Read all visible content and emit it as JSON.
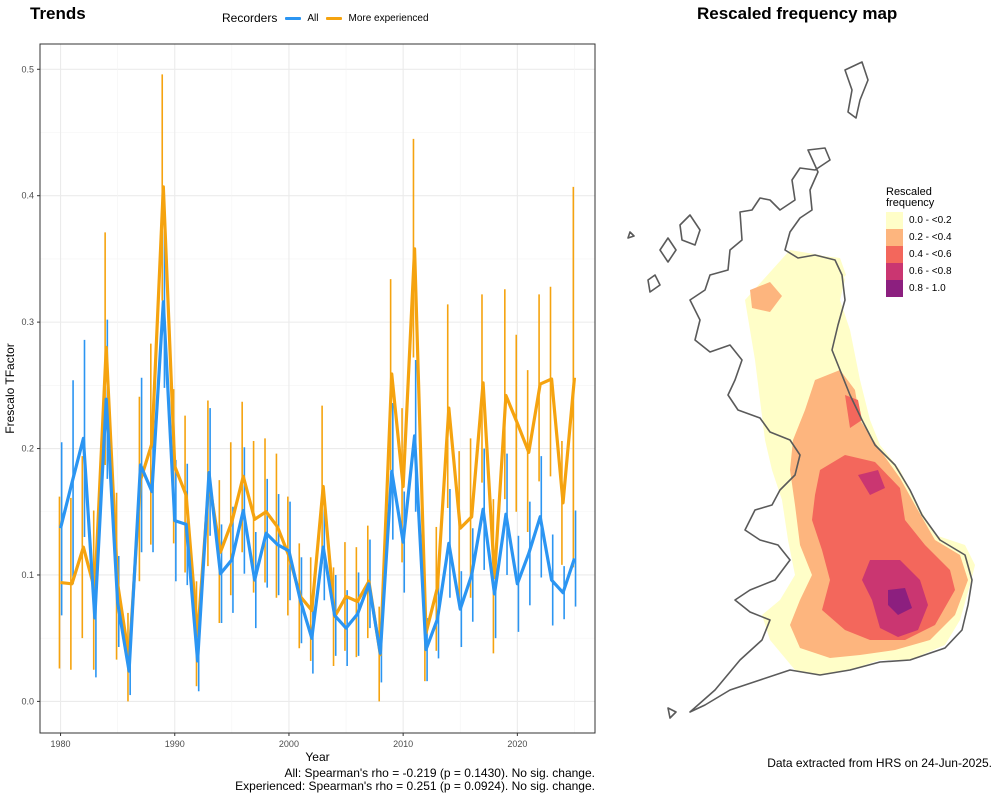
{
  "trends_title": "Trends",
  "map_title": "Rescaled frequency map",
  "legend": {
    "title": "Recorders",
    "items": [
      {
        "label": "All",
        "color": "#2B95F2"
      },
      {
        "label": "More experienced",
        "color": "#F5A30F"
      }
    ]
  },
  "stats": {
    "line1": "All: Spearman's rho = -0.219 (p = 0.1430). No sig. change.",
    "line2": "Experienced: Spearman's rho = 0.251 (p = 0.0924). No sig. change."
  },
  "chart_data": {
    "type": "line",
    "xlabel": "Year",
    "ylabel": "Frescalo TFactor",
    "xlim": [
      1978.2,
      1983.0
    ],
    "ylim": [
      -0.025,
      0.52
    ],
    "x_ticks": [
      1980,
      1990,
      2000,
      2010,
      2020
    ],
    "y_ticks": [
      0.0,
      0.1,
      0.2,
      0.3,
      0.4,
      0.5
    ],
    "y_tick_labels": [
      "0.0",
      "0.1",
      "0.2",
      "0.3",
      "0.4",
      "0.5"
    ],
    "grid": true,
    "error_bars": true,
    "x": [
      1980,
      1981,
      1982,
      1983,
      1984,
      1985,
      1986,
      1987,
      1988,
      1989,
      1990,
      1991,
      1992,
      1993,
      1994,
      1995,
      1996,
      1997,
      1998,
      1999,
      2000,
      2001,
      2002,
      2003,
      2004,
      2005,
      2006,
      2007,
      2008,
      2009,
      2010,
      2011,
      2012,
      2013,
      2014,
      2015,
      2016,
      2017,
      2018,
      2019,
      2020,
      2021,
      2022,
      2023,
      2024,
      2025
    ],
    "series": [
      {
        "name": "All",
        "color": "#2B95F2",
        "values": [
          0.137,
          0.173,
          0.208,
          0.066,
          0.239,
          0.078,
          0.024,
          0.187,
          0.166,
          0.316,
          0.143,
          0.14,
          0.032,
          0.181,
          0.101,
          0.112,
          0.151,
          0.096,
          0.133,
          0.124,
          0.119,
          0.08,
          0.05,
          0.122,
          0.068,
          0.058,
          0.069,
          0.093,
          0.038,
          0.182,
          0.126,
          0.21,
          0.041,
          0.065,
          0.125,
          0.073,
          0.1,
          0.152,
          0.085,
          0.148,
          0.093,
          0.117,
          0.146,
          0.096,
          0.086,
          0.113
        ],
        "lower": [
          0.068,
          0.093,
          0.13,
          0.019,
          0.176,
          0.043,
          0.005,
          0.118,
          0.118,
          0.248,
          0.095,
          0.092,
          0.008,
          0.131,
          0.062,
          0.07,
          0.101,
          0.058,
          0.09,
          0.084,
          0.08,
          0.046,
          0.022,
          0.08,
          0.036,
          0.028,
          0.036,
          0.058,
          0.015,
          0.128,
          0.086,
          0.15,
          0.016,
          0.034,
          0.082,
          0.043,
          0.063,
          0.104,
          0.05,
          0.1,
          0.055,
          0.076,
          0.098,
          0.06,
          0.065,
          0.075
        ],
        "upper": [
          0.205,
          0.254,
          0.286,
          0.113,
          0.302,
          0.115,
          0.043,
          0.256,
          0.214,
          0.384,
          0.191,
          0.188,
          0.056,
          0.232,
          0.14,
          0.154,
          0.201,
          0.134,
          0.176,
          0.164,
          0.158,
          0.114,
          0.078,
          0.164,
          0.1,
          0.088,
          0.102,
          0.128,
          0.061,
          0.236,
          0.166,
          0.27,
          0.066,
          0.096,
          0.168,
          0.103,
          0.137,
          0.2,
          0.12,
          0.196,
          0.131,
          0.158,
          0.194,
          0.132,
          0.107,
          0.151
        ]
      },
      {
        "name": "More experienced",
        "color": "#F5A30F",
        "values": [
          0.094,
          0.093,
          0.122,
          0.088,
          0.28,
          0.093,
          0.034,
          0.175,
          0.204,
          0.407,
          0.186,
          0.163,
          0.052,
          0.174,
          0.118,
          0.142,
          0.178,
          0.144,
          0.15,
          0.138,
          0.115,
          0.083,
          0.072,
          0.17,
          0.067,
          0.083,
          0.079,
          0.095,
          0.037,
          0.259,
          0.17,
          0.358,
          0.054,
          0.09,
          0.232,
          0.137,
          0.146,
          0.252,
          0.098,
          0.242,
          0.22,
          0.197,
          0.251,
          0.255,
          0.157,
          0.256
        ],
        "lower": [
          0.026,
          0.025,
          0.05,
          0.025,
          0.187,
          0.033,
          0.0,
          0.095,
          0.124,
          0.317,
          0.125,
          0.102,
          0.012,
          0.107,
          0.062,
          0.084,
          0.118,
          0.086,
          0.094,
          0.082,
          0.068,
          0.042,
          0.032,
          0.109,
          0.028,
          0.04,
          0.035,
          0.05,
          0.0,
          0.183,
          0.11,
          0.272,
          0.016,
          0.04,
          0.153,
          0.078,
          0.082,
          0.173,
          0.038,
          0.16,
          0.15,
          0.134,
          0.174,
          0.178,
          0.108,
          0.106
        ],
        "upper": [
          0.162,
          0.161,
          0.194,
          0.151,
          0.371,
          0.165,
          0.07,
          0.241,
          0.283,
          0.496,
          0.247,
          0.226,
          0.095,
          0.238,
          0.175,
          0.205,
          0.237,
          0.206,
          0.208,
          0.196,
          0.162,
          0.125,
          0.114,
          0.234,
          0.106,
          0.126,
          0.122,
          0.139,
          0.075,
          0.334,
          0.232,
          0.445,
          0.095,
          0.138,
          0.314,
          0.198,
          0.208,
          0.322,
          0.16,
          0.326,
          0.29,
          0.262,
          0.322,
          0.328,
          0.206,
          0.407
        ]
      }
    ]
  },
  "map": {
    "outline_color": "#5A5A5A",
    "legend_title": "Rescaled frequency",
    "classes": [
      {
        "label": "0.0 - <0.2",
        "color": "#FFFEC8"
      },
      {
        "label": "0.2 - <0.4",
        "color": "#FDB57E"
      },
      {
        "label": "0.4 - <0.6",
        "color": "#F3675C"
      },
      {
        "label": "0.6 - <0.8",
        "color": "#CA3671"
      },
      {
        "label": "0.8 - 1.0",
        "color": "#8C1F7F"
      }
    ]
  },
  "extracted_note": "Data extracted from HRS on 24-Jun-2025."
}
